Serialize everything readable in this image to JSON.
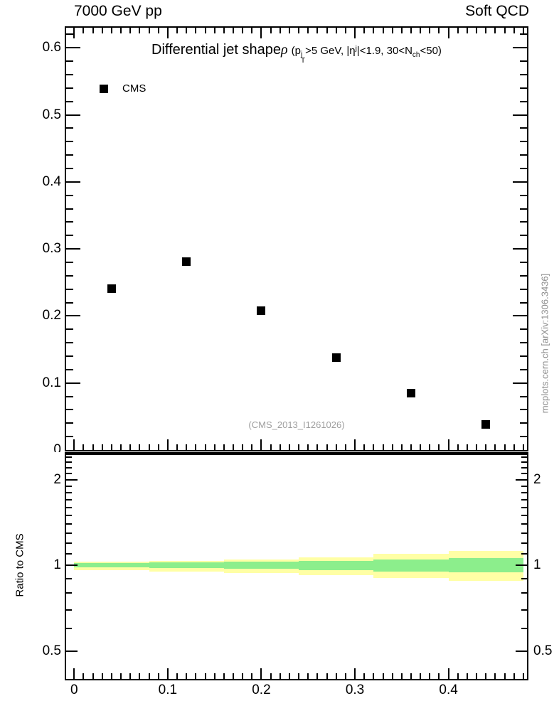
{
  "header": {
    "left_label": "7000 GeV pp",
    "right_label": "Soft QCD"
  },
  "watermarks": {
    "analysis_id": "(CMS_2013_I1261026)",
    "site_ref": "mcplots.cern.ch [arXiv:1306.3436]"
  },
  "main_plot": {
    "title": {
      "lead": "Differential jet shape",
      "rho": "ρ",
      "paren_open": "(p",
      "pt_sup": "j",
      "pt_sub": "T",
      "mid1": ">5 GeV, |η",
      "eta_sup": "j",
      "mid2": "|<1.9, 30<N",
      "nch_sub": "ch",
      "close": "<50)"
    },
    "legend": {
      "entries": [
        {
          "label": "CMS",
          "marker": "filled-square",
          "color": "#000000"
        }
      ]
    }
  },
  "ratio_panel": {
    "ylabel": "Ratio to CMS"
  },
  "colors": {
    "axis": "#000000",
    "marker": "#000000",
    "band_outer": "#ffffa5",
    "band_inner": "#8cee8c",
    "watermark_gray": "#8c8c8c",
    "analysis_gray": "#9e9e9e"
  },
  "chart_data": [
    {
      "type": "scatter",
      "panel": "main",
      "title": "Differential jet shape ρ (pT_j>5 GeV, |eta_j|<1.9, 30<Nch<50)",
      "series": [
        {
          "name": "CMS",
          "marker": "filled-square",
          "color": "#000000",
          "x": [
            0.04,
            0.12,
            0.2,
            0.28,
            0.36,
            0.44
          ],
          "y": [
            0.241,
            0.281,
            0.208,
            0.138,
            0.085,
            0.038
          ]
        }
      ],
      "xlim": [
        -0.0086,
        0.4839
      ],
      "ylim": [
        0,
        0.63
      ],
      "grid": false,
      "legend_position": "top-left",
      "xticks": {
        "major": [
          0,
          0.1,
          0.2,
          0.3,
          0.4
        ],
        "labels": [
          "0",
          "0.1",
          "0.2",
          "0.3",
          "0.4"
        ],
        "minor_step": 0.01,
        "minor_max": 0.48
      },
      "yticks": {
        "major": [
          0,
          0.1,
          0.2,
          0.3,
          0.4,
          0.5,
          0.6
        ],
        "labels": [
          "0",
          "0.1",
          "0.2",
          "0.3",
          "0.4",
          "0.5",
          "0.6"
        ],
        "minor_step": 0.02,
        "minor_max": 0.62
      }
    },
    {
      "type": "band-ratio",
      "panel": "ratio",
      "ylabel": "Ratio to CMS",
      "yscale": "log",
      "ylim": [
        0.4,
        2.47
      ],
      "xlim": [
        -0.0086,
        0.4839
      ],
      "reference_line": 1.0,
      "yticks": {
        "major": [
          0.5,
          1,
          2
        ],
        "labels": [
          "0.5",
          "1",
          "2"
        ],
        "minor": [
          0.6,
          0.7,
          0.8,
          0.9,
          1.1,
          1.2,
          1.3,
          1.4,
          1.5,
          1.6,
          1.7,
          1.8,
          1.9,
          2.1,
          2.2,
          2.3,
          2.4
        ]
      },
      "xticks": {
        "major": [
          0,
          0.1,
          0.2,
          0.3,
          0.4
        ],
        "labels": [
          "0",
          "0.1",
          "0.2",
          "0.3",
          "0.4"
        ],
        "minor_step": 0.01,
        "minor_max": 0.48
      },
      "bin_edges": [
        0,
        0.08,
        0.16,
        0.24,
        0.32,
        0.4,
        0.48
      ],
      "band_outer_lo": [
        0.962,
        0.954,
        0.941,
        0.923,
        0.906,
        0.883
      ],
      "band_outer_hi": [
        1.033,
        1.039,
        1.049,
        1.069,
        1.096,
        1.122
      ],
      "band_inner_lo": [
        0.985,
        0.981,
        0.976,
        0.962,
        0.95,
        0.944
      ],
      "band_inner_hi": [
        1.019,
        1.023,
        1.029,
        1.039,
        1.049,
        1.059
      ]
    }
  ]
}
